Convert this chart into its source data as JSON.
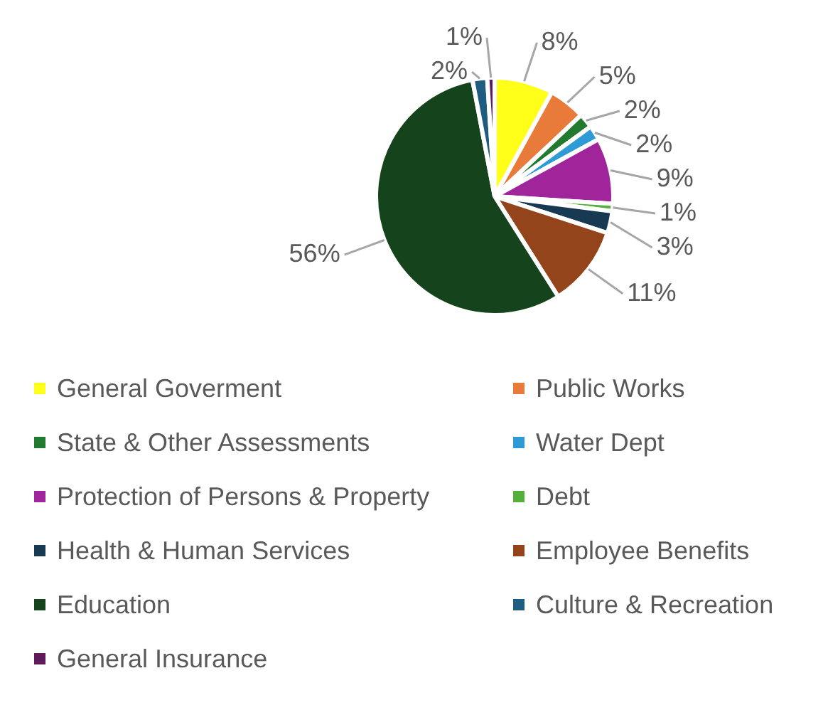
{
  "chart_data": {
    "type": "pie",
    "categories": [
      "General Goverment",
      "Public Works",
      "State & Other Assessments",
      "Water Dept",
      "Protection of Persons & Property",
      "Debt",
      "Health & Human Services",
      "Employee Benefits",
      "Education",
      "Culture & Recreation",
      "General Insurance"
    ],
    "values": [
      8,
      5,
      2,
      2,
      9,
      1,
      3,
      11,
      56,
      2,
      1
    ],
    "colors": [
      "#ffff1a",
      "#e97b3a",
      "#217a2e",
      "#2e9bd6",
      "#a0259a",
      "#53b03a",
      "#173a52",
      "#93441b",
      "#15431c",
      "#1e5c80",
      "#5e1a5c"
    ],
    "value_labels": [
      "8%",
      "5%",
      "2%",
      "2%",
      "9%",
      "1%",
      "3%",
      "11%",
      "56%",
      "2%",
      "1%"
    ],
    "legend": "bottom"
  }
}
